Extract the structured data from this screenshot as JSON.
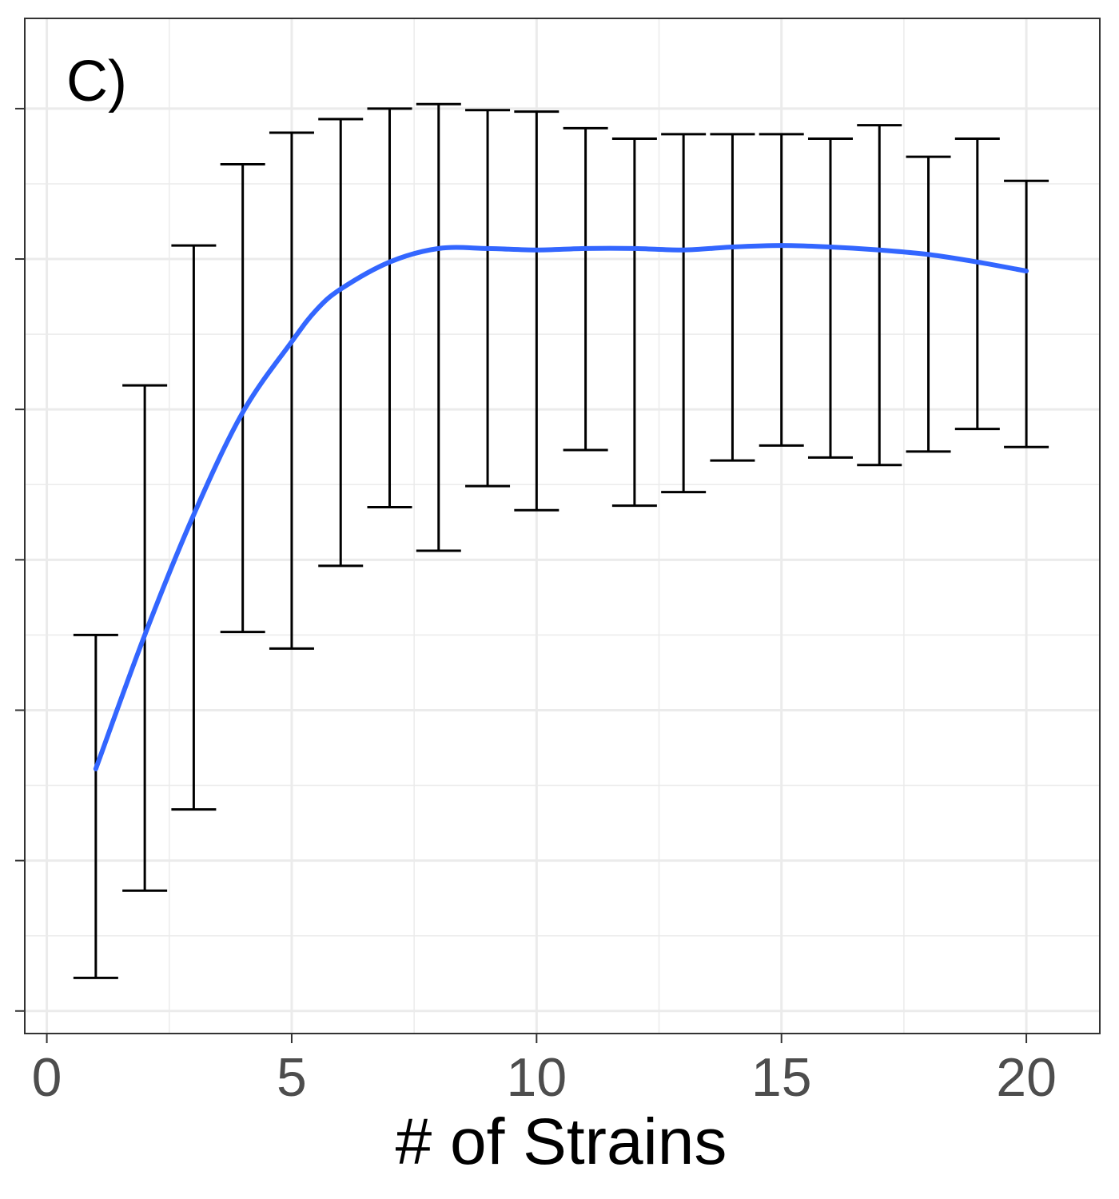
{
  "chart_data": {
    "type": "line",
    "panel_label": "C)",
    "xlabel": "# of Strains",
    "ylabel": "",
    "x_ticks": [
      0,
      5,
      10,
      15,
      20
    ],
    "x_tick_labels": [
      "0",
      "5",
      "10",
      "15",
      "20"
    ],
    "y_ticks": [
      0,
      1,
      2,
      3,
      4,
      5,
      6
    ],
    "xlim": [
      -0.45,
      21.5
    ],
    "ylim": [
      -0.15,
      6.6
    ],
    "grid": true,
    "y_tick_labels_shown": false,
    "error_bars": {
      "x": [
        1,
        2,
        3,
        4,
        5,
        6,
        7,
        8,
        9,
        10,
        11,
        12,
        13,
        14,
        15,
        16,
        17,
        18,
        19,
        20
      ],
      "lower": [
        0.22,
        0.8,
        1.34,
        2.52,
        2.41,
        2.96,
        3.35,
        3.06,
        3.49,
        3.33,
        3.73,
        3.36,
        3.45,
        3.66,
        3.76,
        3.68,
        3.63,
        3.72,
        3.87,
        3.75
      ],
      "upper": [
        2.5,
        4.16,
        5.09,
        5.63,
        5.84,
        5.93,
        6.0,
        6.03,
        5.99,
        5.98,
        5.87,
        5.8,
        5.83,
        5.83,
        5.83,
        5.8,
        5.89,
        5.68,
        5.8,
        5.52
      ]
    },
    "smooth_line": {
      "x": [
        1,
        2,
        3,
        4,
        5,
        5.5,
        6,
        7,
        8,
        9,
        10,
        11,
        12,
        13,
        14,
        15,
        16,
        17,
        18,
        19,
        20
      ],
      "y": [
        1.61,
        2.5,
        3.3,
        3.98,
        4.45,
        4.66,
        4.8,
        4.98,
        5.07,
        5.07,
        5.06,
        5.07,
        5.07,
        5.06,
        5.08,
        5.09,
        5.08,
        5.06,
        5.03,
        4.98,
        4.92
      ]
    },
    "colors": {
      "line": "#3366ff",
      "error_bars": "#000000",
      "grid": "#ebebeb",
      "panel_border": "#333333"
    }
  }
}
